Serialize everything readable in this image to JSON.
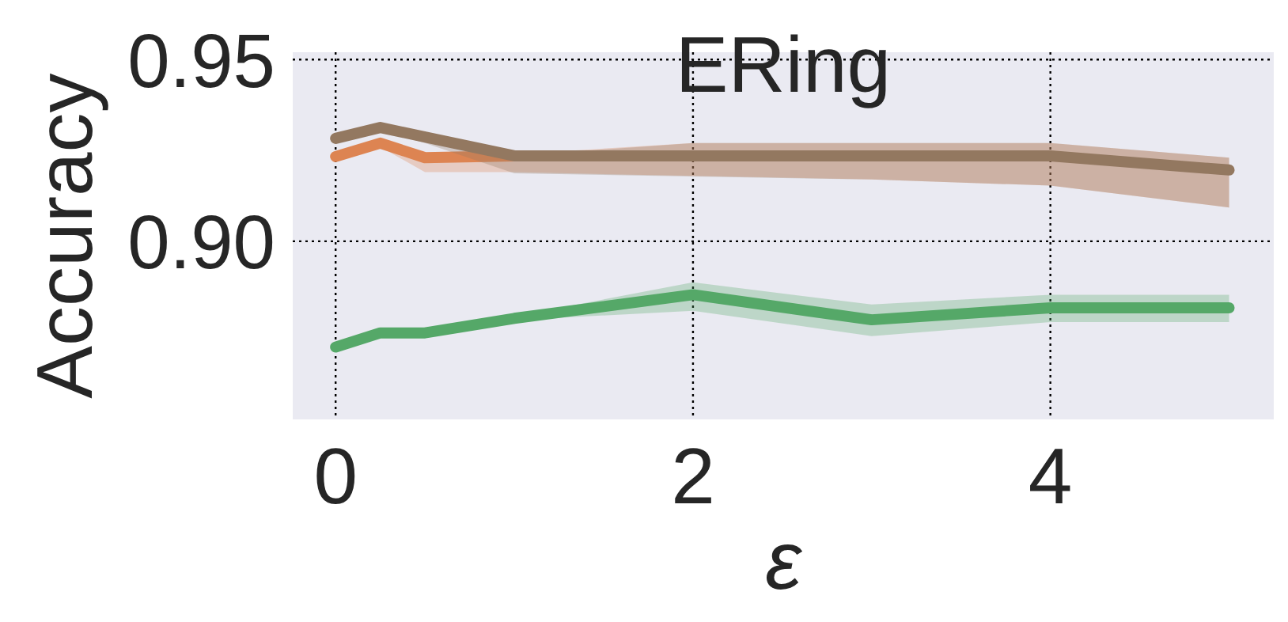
{
  "chart_data": {
    "type": "line",
    "title": "ERing",
    "xlabel": "ε",
    "ylabel": "Accuracy",
    "x": [
      0,
      0.25,
      0.5,
      1,
      2,
      3,
      4,
      5
    ],
    "xlim": [
      -0.24,
      5.25
    ],
    "xticks": [
      0,
      2,
      4
    ],
    "ylim": [
      0.851,
      0.952
    ],
    "yticks": [
      {
        "value": 0.9,
        "label": "0.90"
      },
      {
        "value": 0.95,
        "label": "0.95"
      }
    ],
    "grid": true,
    "marker": "none",
    "line_style": "solid",
    "series": [
      {
        "color": "#dd8452",
        "values": [
          0.9233,
          0.927,
          0.923,
          0.9235,
          null,
          null,
          null,
          null
        ],
        "lower": [
          0.9225,
          0.926,
          0.919,
          0.919,
          0.918,
          0.917,
          0.9153,
          0.9093
        ],
        "upper": [
          0.924,
          0.928,
          0.924,
          0.924,
          0.927,
          0.927,
          0.927,
          0.923
        ]
      },
      {
        "color": "#937860",
        "values": [
          0.9283,
          0.9313,
          0.9287,
          0.9235,
          0.9235,
          0.9235,
          0.9235,
          0.9196
        ],
        "lower": [
          0.9275,
          0.9305,
          0.927,
          0.9187,
          0.9178,
          0.917,
          0.9153,
          0.9093
        ],
        "upper": [
          0.929,
          0.932,
          0.929,
          0.9235,
          0.927,
          0.927,
          0.927,
          0.923
        ]
      },
      {
        "color": "#55a868",
        "values": [
          0.8709,
          0.8748,
          0.8748,
          0.8788,
          0.8853,
          0.8784,
          0.8817,
          0.8817
        ],
        "lower": [
          0.8704,
          0.8743,
          0.8743,
          0.8783,
          0.8809,
          0.8739,
          0.8778,
          0.8778
        ],
        "upper": [
          0.8714,
          0.8753,
          0.8753,
          0.8793,
          0.8887,
          0.8826,
          0.8853,
          0.8853
        ]
      }
    ]
  }
}
